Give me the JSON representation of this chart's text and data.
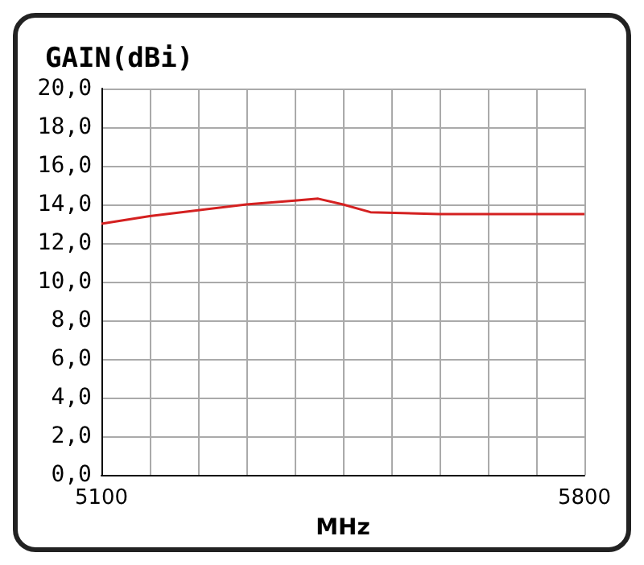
{
  "chart_data": {
    "type": "line",
    "ylabel": "GAIN(dBi)",
    "xlabel": "MHz",
    "x": [
      5100,
      5170,
      5240,
      5310,
      5380,
      5414,
      5450,
      5490,
      5590,
      5660,
      5730,
      5800
    ],
    "series": [
      {
        "color": "#d42020",
        "values": [
          13.0,
          13.4,
          13.7,
          14.0,
          14.2,
          14.3,
          14.0,
          13.6,
          13.5,
          13.5,
          13.5,
          13.5
        ]
      }
    ],
    "xlim": [
      5100,
      5800
    ],
    "xticks": [
      5100,
      {
        "value": 5170,
        "label": null
      },
      {
        "value": 5240,
        "label": null
      },
      {
        "value": 5310,
        "label": null
      },
      {
        "value": 5380,
        "label": null
      },
      {
        "value": 5450,
        "label": null
      },
      {
        "value": 5520,
        "label": null
      },
      {
        "value": 5590,
        "label": null
      },
      {
        "value": 5660,
        "label": null
      },
      {
        "value": 5730,
        "label": null
      },
      5800
    ],
    "ylim": [
      0,
      20
    ],
    "yticks": [
      {
        "value": 0,
        "label": "0,0"
      },
      {
        "value": 2,
        "label": "2,0"
      },
      {
        "value": 4,
        "label": "4,0"
      },
      {
        "value": 6,
        "label": "6,0"
      },
      {
        "value": 8,
        "label": "8,0"
      },
      {
        "value": 10,
        "label": "10,0"
      },
      {
        "value": 12,
        "label": "12,0"
      },
      {
        "value": 14,
        "label": "14,0"
      },
      {
        "value": 16,
        "label": "16,0"
      },
      {
        "value": 18,
        "label": "18,0"
      },
      {
        "value": 20,
        "label": "20,0"
      }
    ],
    "grid": true,
    "marker": "none",
    "line_style": "solid"
  }
}
